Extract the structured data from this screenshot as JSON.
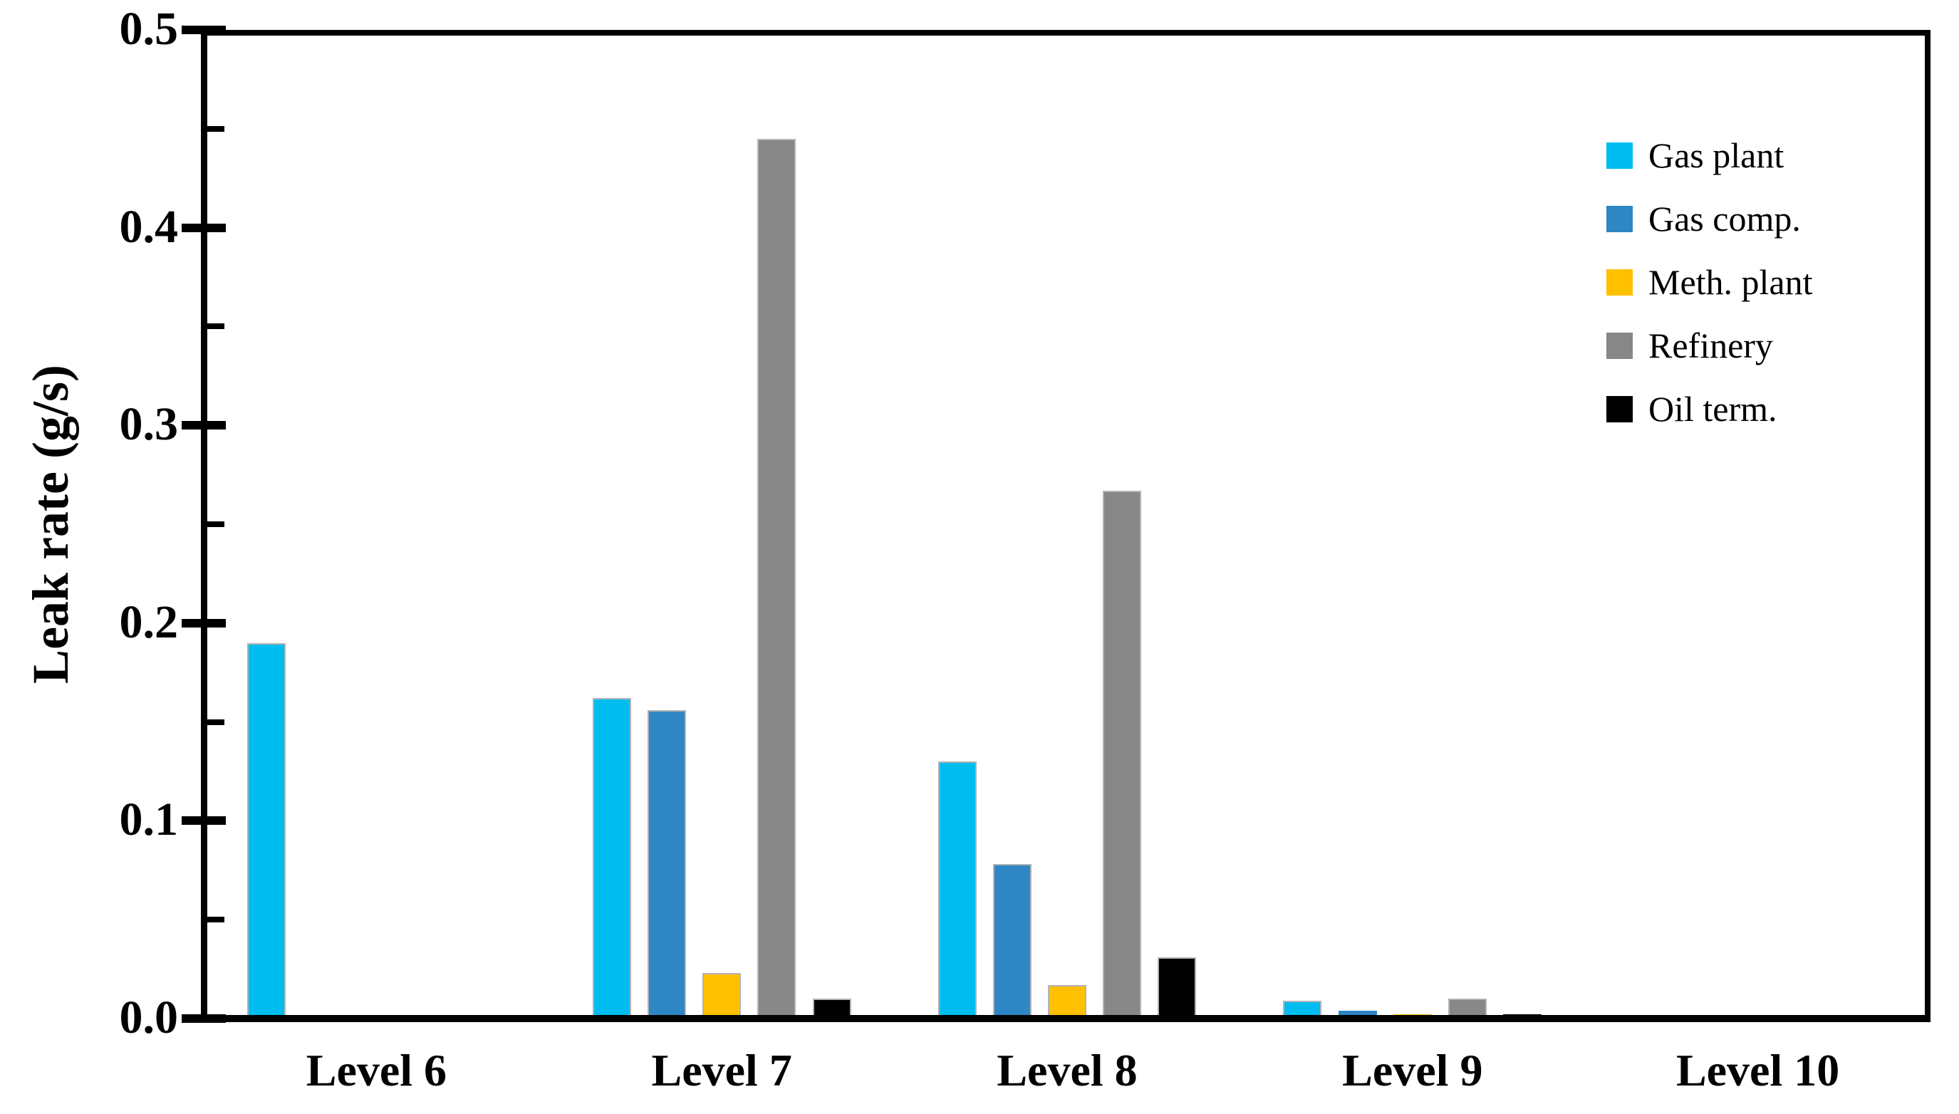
{
  "chart_data": {
    "type": "bar",
    "title": "",
    "xlabel": "",
    "ylabel": "Leak rate (g/s)",
    "categories": [
      "Level 6",
      "Level 7",
      "Level 8",
      "Level 9",
      "Level 10"
    ],
    "series": [
      {
        "name": "Gas plant",
        "color": "#00BDF0",
        "values": [
          0.19,
          0.162,
          0.13,
          0.009,
          0
        ]
      },
      {
        "name": "Gas comp.",
        "color": "#2E86C5",
        "values": [
          0,
          0.156,
          0.078,
          0.004,
          0
        ]
      },
      {
        "name": "Meth. plant",
        "color": "#FFC000",
        "values": [
          0,
          0.023,
          0.017,
          0.002,
          0
        ]
      },
      {
        "name": "Refinery",
        "color": "#878787",
        "values": [
          0,
          0.445,
          0.267,
          0.01,
          0
        ]
      },
      {
        "name": "Oil term.",
        "color": "#000000",
        "values": [
          0,
          0.01,
          0.031,
          0.002,
          0
        ]
      }
    ],
    "ylim": [
      0,
      0.5
    ],
    "yticks": [
      0.0,
      0.1,
      0.2,
      0.3,
      0.4,
      0.5
    ],
    "ytick_labels": [
      "0.0",
      "0.1",
      "0.2",
      "0.3",
      "0.4",
      "0.5"
    ],
    "yminor_ticks": [
      0.05,
      0.15,
      0.25,
      0.35,
      0.45
    ],
    "grid": false,
    "legend_position": "upper-right-inside",
    "bar_border_color": "#b3b3b3"
  }
}
